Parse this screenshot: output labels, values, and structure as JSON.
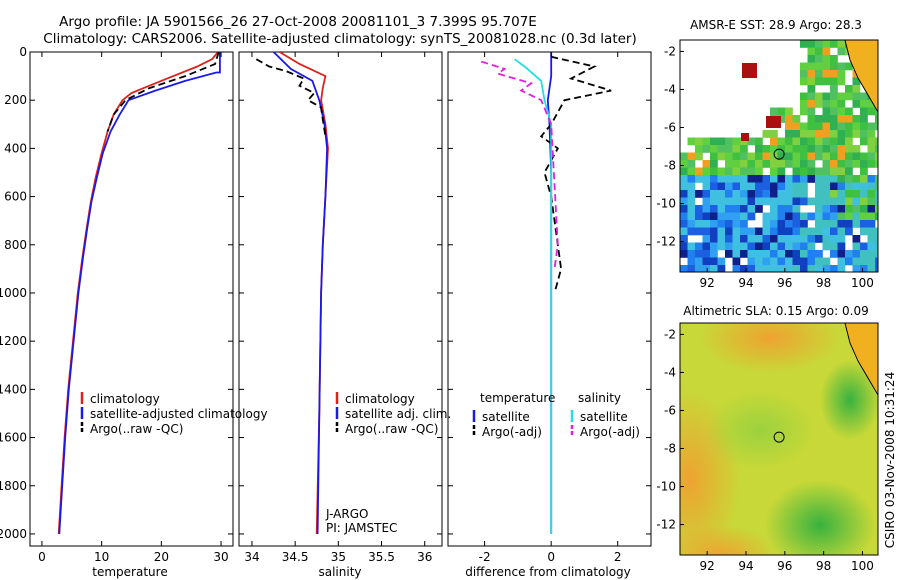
{
  "header": {
    "line1": "Argo profile: JA 5901566_26 27-Oct-2008 20081101_3 7.399S 95.707E",
    "line2": "Climatology: CARS2006. Satellite-adjusted climatology: synTS_20081028.nc (0.3d later)"
  },
  "side_label": "CSIRO 03-Nov-2008 10:31:24",
  "colors": {
    "red": "#e0201a",
    "blue": "#1a1ae6",
    "black": "#000000",
    "cyan": "#22e0e0",
    "magenta": "#e020e0"
  },
  "chart_data": [
    {
      "id": "temperature",
      "type": "line",
      "xlabel": "temperature",
      "xlim": [
        -2,
        32
      ],
      "ylim": [
        0,
        2050
      ],
      "xticks": [
        "0",
        "10",
        "20",
        "30"
      ],
      "xtick_values": [
        0,
        10,
        20,
        30
      ],
      "yticks": [
        "0",
        "200",
        "400",
        "600",
        "800",
        "1000",
        "1200",
        "1400",
        "1600",
        "1800",
        "2000"
      ],
      "ytick_values": [
        0,
        200,
        400,
        600,
        800,
        1000,
        1200,
        1400,
        1600,
        1800,
        2000
      ],
      "legend": {
        "position": "lower-right",
        "entries": [
          "climatology",
          "satellite-adjusted climatology",
          "Argo(..raw -QC)"
        ]
      },
      "series": [
        {
          "name": "climatology",
          "color": "red",
          "points": [
            [
              29.5,
              0
            ],
            [
              28.5,
              30
            ],
            [
              26,
              60
            ],
            [
              22,
              100
            ],
            [
              18,
              140
            ],
            [
              15,
              170
            ],
            [
              13.5,
              200
            ],
            [
              12,
              260
            ],
            [
              11,
              330
            ],
            [
              10,
              420
            ],
            [
              9,
              520
            ],
            [
              8.2,
              620
            ],
            [
              7.5,
              730
            ],
            [
              6.8,
              850
            ],
            [
              6,
              1000
            ],
            [
              5.2,
              1200
            ],
            [
              4.4,
              1400
            ],
            [
              3.8,
              1600
            ],
            [
              3.3,
              1800
            ],
            [
              2.8,
              2000
            ]
          ]
        },
        {
          "name": "satellite-adjusted climatology",
          "color": "blue",
          "points": [
            [
              29.8,
              0
            ],
            [
              29.8,
              85
            ],
            [
              29.2,
              85
            ],
            [
              24,
              120
            ],
            [
              19,
              160
            ],
            [
              14.5,
              200
            ],
            [
              13,
              260
            ],
            [
              11.5,
              330
            ],
            [
              10.2,
              420
            ],
            [
              9.2,
              520
            ],
            [
              8.3,
              620
            ],
            [
              7.6,
              730
            ],
            [
              6.9,
              850
            ],
            [
              6.1,
              1000
            ],
            [
              5.3,
              1200
            ],
            [
              4.5,
              1400
            ],
            [
              3.9,
              1600
            ],
            [
              3.4,
              1800
            ],
            [
              2.9,
              2000
            ]
          ]
        },
        {
          "name": "Argo(..raw -QC)",
          "color": "black",
          "dashed": true,
          "points": [
            [
              29.6,
              0
            ],
            [
              29,
              50
            ],
            [
              24,
              100
            ],
            [
              18,
              150
            ],
            [
              14,
              200
            ],
            [
              12,
              260
            ],
            [
              11,
              330
            ]
          ]
        }
      ]
    },
    {
      "id": "salinity",
      "type": "line",
      "xlabel": "salinity",
      "xlim": [
        33.85,
        36.2
      ],
      "ylim": [
        0,
        2050
      ],
      "xticks": [
        "34",
        "34.5",
        "35",
        "35.5",
        "36"
      ],
      "xtick_values": [
        34,
        34.5,
        35,
        35.5,
        36
      ],
      "yticks": [],
      "legend": {
        "position": "lower-right",
        "entries": [
          "climatology",
          "satellite adj. clim.",
          "Argo(..raw -QC)"
        ]
      },
      "annotations": [
        "J-ARGO",
        "PI: JAMSTEC"
      ],
      "series": [
        {
          "name": "climatology",
          "color": "red",
          "points": [
            [
              34.32,
              0
            ],
            [
              34.55,
              50
            ],
            [
              34.85,
              100
            ],
            [
              34.82,
              150
            ],
            [
              34.8,
              200
            ],
            [
              34.85,
              300
            ],
            [
              34.88,
              400
            ],
            [
              34.85,
              600
            ],
            [
              34.82,
              800
            ],
            [
              34.8,
              1000
            ],
            [
              34.78,
              1500
            ],
            [
              34.75,
              2000
            ]
          ]
        },
        {
          "name": "satellite adj. clim.",
          "color": "blue",
          "points": [
            [
              34.25,
              0
            ],
            [
              34.45,
              70
            ],
            [
              34.7,
              120
            ],
            [
              34.78,
              200
            ],
            [
              34.84,
              300
            ],
            [
              34.87,
              400
            ],
            [
              34.85,
              600
            ],
            [
              34.82,
              800
            ],
            [
              34.8,
              1000
            ],
            [
              34.78,
              1500
            ],
            [
              34.76,
              2000
            ]
          ]
        },
        {
          "name": "Argo(..raw -QC)",
          "color": "black",
          "dashed": true,
          "points": [
            [
              34.05,
              30
            ],
            [
              34.2,
              60
            ],
            [
              34.4,
              80
            ],
            [
              34.6,
              110
            ],
            [
              34.55,
              140
            ],
            [
              34.72,
              170
            ],
            [
              34.65,
              200
            ],
            [
              34.8,
              230
            ],
            [
              34.82,
              280
            ],
            [
              34.85,
              350
            ]
          ]
        }
      ]
    },
    {
      "id": "difference",
      "type": "line",
      "xlabel": "difference from climatology",
      "xlim": [
        -3.1,
        3.0
      ],
      "ylim": [
        0,
        2050
      ],
      "xticks": [
        "-2",
        "0",
        "2"
      ],
      "xtick_values": [
        -2,
        0,
        2
      ],
      "yticks": [],
      "legend": {
        "position": "lower-right",
        "group_titles": [
          "temperature",
          "salinity"
        ],
        "entries": [
          "satellite",
          "Argo(-adj)",
          "satellite",
          "Argo(-adj)"
        ]
      },
      "series": [
        {
          "name": "temperature satellite",
          "color": "blue",
          "points": [
            [
              0,
              0
            ],
            [
              0,
              100
            ],
            [
              -0.1,
              200
            ],
            [
              -0.05,
              300
            ],
            [
              0,
              500
            ],
            [
              0,
              1000
            ],
            [
              0,
              1500
            ],
            [
              0,
              2000
            ]
          ]
        },
        {
          "name": "temperature Argo(-adj)",
          "color": "black",
          "dashed": true,
          "points": [
            [
              0,
              20
            ],
            [
              1.3,
              60
            ],
            [
              0.6,
              110
            ],
            [
              1.8,
              160
            ],
            [
              0.4,
              200
            ],
            [
              0,
              300
            ],
            [
              -0.3,
              350
            ],
            [
              0.2,
              400
            ],
            [
              -0.2,
              500
            ],
            [
              0,
              600
            ],
            [
              0.2,
              800
            ],
            [
              0.3,
              900
            ],
            [
              0.1,
              1000
            ]
          ]
        },
        {
          "name": "salinity satellite",
          "color": "cyan",
          "points": [
            [
              -1.1,
              30
            ],
            [
              -0.8,
              60
            ],
            [
              -0.3,
              120
            ],
            [
              -0.2,
              200
            ],
            [
              0,
              300
            ],
            [
              0,
              500
            ],
            [
              0,
              1000
            ],
            [
              0,
              1500
            ],
            [
              0,
              2000
            ]
          ]
        },
        {
          "name": "salinity Argo(-adj)",
          "color": "magenta",
          "dashed": true,
          "points": [
            [
              -2.1,
              40
            ],
            [
              -1.4,
              70
            ],
            [
              -1.6,
              90
            ],
            [
              -0.6,
              130
            ],
            [
              -0.9,
              160
            ],
            [
              -0.3,
              200
            ],
            [
              0,
              300
            ],
            [
              0.2,
              800
            ],
            [
              0.1,
              900
            ]
          ]
        }
      ]
    },
    {
      "id": "sst_map",
      "type": "heatmap",
      "title": "AMSR-E SST: 28.9 Argo: 28.3",
      "xlim": [
        90.6,
        100.8
      ],
      "ylim": [
        -13.6,
        -1.4
      ],
      "xticks": [
        "92",
        "94",
        "96",
        "98",
        "100"
      ],
      "xtick_values": [
        92,
        94,
        96,
        98,
        100
      ],
      "yticks": [
        "-2",
        "-4",
        "-6",
        "-8",
        "-10",
        "-12"
      ],
      "ytick_values": [
        -2,
        -4,
        -6,
        -8,
        -10,
        -12
      ],
      "marker": [
        95.707,
        -7.399
      ]
    },
    {
      "id": "sla_map",
      "type": "heatmap",
      "title": "Altimetric SLA: 0.15 Argo: 0.09",
      "xlim": [
        90.6,
        100.8
      ],
      "ylim": [
        -13.6,
        -1.4
      ],
      "xticks": [
        "92",
        "94",
        "96",
        "98",
        "100"
      ],
      "xtick_values": [
        92,
        94,
        96,
        98,
        100
      ],
      "yticks": [
        "-2",
        "-4",
        "-6",
        "-8",
        "-10",
        "-12"
      ],
      "ytick_values": [
        -2,
        -4,
        -6,
        -8,
        -10,
        -12
      ],
      "marker": [
        95.707,
        -7.399
      ]
    }
  ]
}
